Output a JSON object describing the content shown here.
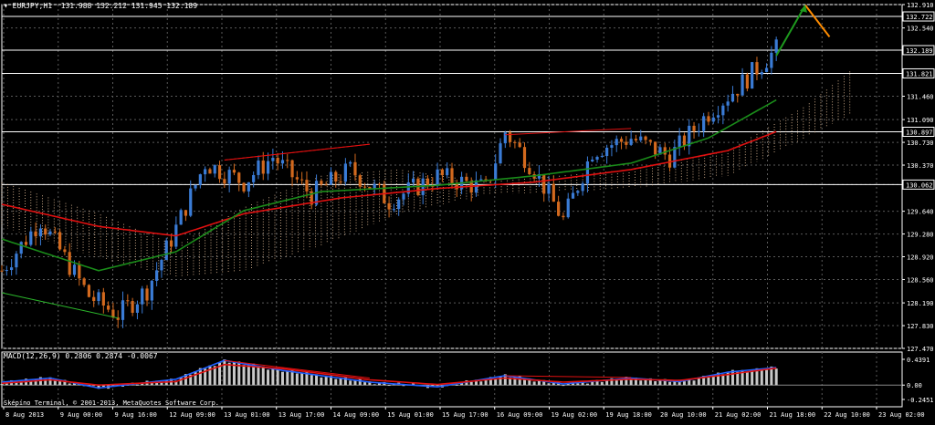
{
  "header": {
    "symbol_label": "EURJPY,H1",
    "ohlc": [
      "131.988",
      "132.212",
      "131.945",
      "132.189"
    ]
  },
  "macd_label": "MACD(12,26,9) 0.2806 0.2874 -0.0067",
  "copyright": "Sképíno Terminal, © 2001-2013, MetaQuotes Software Corp.",
  "colors": {
    "background": "#000000",
    "bull_candle": "#3a7bd5",
    "bear_candle": "#d2691e",
    "grid": "#5a5a5a",
    "ma_slow": "#e01010",
    "ma_fast": "#1a8c1a",
    "cloud": "#f0c8a0",
    "macd_hist": "#c8c8c8",
    "macd_main": "#2060ff",
    "macd_signal": "#e01010",
    "arrow_up": "#1e9a1e",
    "arrow_down": "#ff8c00"
  },
  "chart_data": [
    {
      "type": "candlestick",
      "symbol": "EURJPY",
      "timeframe": "H1",
      "ylim": [
        127.47,
        132.91
      ],
      "yticks": [
        "132.910",
        "132.540",
        "132.189",
        "131.821",
        "131.460",
        "131.090",
        "130.730",
        "130.370",
        "130.062",
        "129.640",
        "129.280",
        "128.920",
        "128.560",
        "128.190",
        "127.830",
        "127.470"
      ],
      "price_levels": [
        132.722,
        132.189,
        131.821,
        130.897,
        130.062
      ],
      "xticks": [
        "8 Aug 2013",
        "9 Aug 00:00",
        "9 Aug 16:00",
        "12 Aug 09:00",
        "13 Aug 01:00",
        "13 Aug 17:00",
        "14 Aug 09:00",
        "15 Aug 01:00",
        "15 Aug 17:00",
        "16 Aug 09:00",
        "19 Aug 02:00",
        "19 Aug 18:00",
        "20 Aug 10:00",
        "21 Aug 02:00",
        "21 Aug 18:00",
        "22 Aug 10:00",
        "23 Aug 02:00"
      ],
      "close_keypoints": [
        {
          "x": 0,
          "close": 128.7
        },
        {
          "x": 8,
          "close": 129.5
        },
        {
          "x": 18,
          "close": 128.3
        },
        {
          "x": 24,
          "close": 128.0
        },
        {
          "x": 30,
          "close": 128.4
        },
        {
          "x": 35,
          "close": 129.2
        },
        {
          "x": 42,
          "close": 130.4
        },
        {
          "x": 50,
          "close": 130.1
        },
        {
          "x": 56,
          "close": 130.5
        },
        {
          "x": 64,
          "close": 129.9
        },
        {
          "x": 72,
          "close": 130.3
        },
        {
          "x": 80,
          "close": 129.8
        },
        {
          "x": 90,
          "close": 130.2
        },
        {
          "x": 100,
          "close": 130.0
        },
        {
          "x": 104,
          "close": 130.9
        },
        {
          "x": 110,
          "close": 130.3
        },
        {
          "x": 116,
          "close": 129.5
        },
        {
          "x": 122,
          "close": 130.6
        },
        {
          "x": 130,
          "close": 130.8
        },
        {
          "x": 138,
          "close": 130.5
        },
        {
          "x": 146,
          "close": 131.2
        },
        {
          "x": 152,
          "close": 131.6
        },
        {
          "x": 160,
          "close": 132.2
        }
      ],
      "ma_slow": [
        {
          "x": 0,
          "y": 129.75
        },
        {
          "x": 20,
          "y": 129.4
        },
        {
          "x": 36,
          "y": 129.25
        },
        {
          "x": 50,
          "y": 129.6
        },
        {
          "x": 70,
          "y": 129.85
        },
        {
          "x": 90,
          "y": 130.0
        },
        {
          "x": 110,
          "y": 130.1
        },
        {
          "x": 130,
          "y": 130.3
        },
        {
          "x": 150,
          "y": 130.6
        },
        {
          "x": 160,
          "y": 130.9
        }
      ],
      "ma_fast": [
        {
          "x": 0,
          "y": 129.2
        },
        {
          "x": 20,
          "y": 128.7
        },
        {
          "x": 36,
          "y": 129.0
        },
        {
          "x": 50,
          "y": 129.65
        },
        {
          "x": 66,
          "y": 129.95
        },
        {
          "x": 90,
          "y": 130.05
        },
        {
          "x": 110,
          "y": 130.2
        },
        {
          "x": 130,
          "y": 130.4
        },
        {
          "x": 146,
          "y": 130.8
        },
        {
          "x": 160,
          "y": 131.4
        }
      ],
      "cloud": [
        {
          "x": 0,
          "a": 130.1,
          "b": 129.4
        },
        {
          "x": 20,
          "a": 129.6,
          "b": 128.9
        },
        {
          "x": 36,
          "a": 129.1,
          "b": 128.6
        },
        {
          "x": 50,
          "a": 129.7,
          "b": 128.7
        },
        {
          "x": 66,
          "a": 130.2,
          "b": 129.1
        },
        {
          "x": 82,
          "a": 130.3,
          "b": 129.6
        },
        {
          "x": 100,
          "a": 130.1,
          "b": 129.9
        },
        {
          "x": 130,
          "a": 130.3,
          "b": 130.0
        },
        {
          "x": 150,
          "a": 130.6,
          "b": 130.2
        },
        {
          "x": 166,
          "a": 131.3,
          "b": 130.8
        },
        {
          "x": 176,
          "a": 131.9,
          "b": 131.2
        }
      ],
      "trend_lines_red": [
        [
          {
            "x": 46,
            "y": 130.45
          },
          {
            "x": 76,
            "y": 130.7
          }
        ],
        [
          {
            "x": 46,
            "y": 130.45
          },
          {
            "x": 58,
            "y": 130.55
          }
        ],
        [
          {
            "x": 104,
            "y": 130.85
          },
          {
            "x": 130,
            "y": 130.95
          }
        ],
        [
          {
            "x": 58,
            "y": 130.55
          },
          {
            "x": 76,
            "y": 130.7
          }
        ]
      ],
      "trend_lines_green": [
        [
          {
            "x": 0,
            "y": 128.35
          },
          {
            "x": 24,
            "y": 127.95
          }
        ]
      ],
      "forecast_arrows": [
        {
          "color": "arrow_up",
          "from": {
            "x": 160,
            "y": 132.1
          },
          "to": {
            "x": 166,
            "y": 132.9
          }
        },
        {
          "color": "arrow_down",
          "from": {
            "x": 166,
            "y": 132.9
          },
          "to": {
            "x": 171,
            "y": 132.4
          }
        }
      ]
    },
    {
      "type": "bar",
      "indicator": "MACD",
      "params": [
        12,
        26,
        9
      ],
      "values": {
        "main": 0.2806,
        "signal": 0.2874,
        "diff": -0.0067
      },
      "yticks": [
        "0.4391",
        "0.00",
        "-0.2451"
      ],
      "ylim": [
        -0.2451,
        0.4391
      ],
      "main_keypoints": [
        {
          "x": 0,
          "y": 0.05
        },
        {
          "x": 10,
          "y": 0.12
        },
        {
          "x": 20,
          "y": -0.05
        },
        {
          "x": 36,
          "y": 0.1
        },
        {
          "x": 46,
          "y": 0.42
        },
        {
          "x": 58,
          "y": 0.25
        },
        {
          "x": 76,
          "y": 0.05
        },
        {
          "x": 90,
          "y": -0.03
        },
        {
          "x": 104,
          "y": 0.16
        },
        {
          "x": 116,
          "y": 0.02
        },
        {
          "x": 130,
          "y": 0.12
        },
        {
          "x": 140,
          "y": 0.06
        },
        {
          "x": 150,
          "y": 0.22
        },
        {
          "x": 160,
          "y": 0.3
        }
      ],
      "signal_keypoints": [
        {
          "x": 0,
          "y": 0.03
        },
        {
          "x": 10,
          "y": 0.09
        },
        {
          "x": 20,
          "y": 0.0
        },
        {
          "x": 36,
          "y": 0.06
        },
        {
          "x": 46,
          "y": 0.35
        },
        {
          "x": 58,
          "y": 0.28
        },
        {
          "x": 76,
          "y": 0.09
        },
        {
          "x": 90,
          "y": 0.01
        },
        {
          "x": 104,
          "y": 0.12
        },
        {
          "x": 116,
          "y": 0.05
        },
        {
          "x": 130,
          "y": 0.1
        },
        {
          "x": 140,
          "y": 0.08
        },
        {
          "x": 150,
          "y": 0.18
        },
        {
          "x": 160,
          "y": 0.29
        }
      ],
      "divergence_lines": [
        [
          {
            "x": 46,
            "y": 0.42
          },
          {
            "x": 76,
            "y": 0.12
          }
        ],
        [
          {
            "x": 104,
            "y": 0.16
          },
          {
            "x": 130,
            "y": 0.13
          }
        ]
      ]
    }
  ]
}
